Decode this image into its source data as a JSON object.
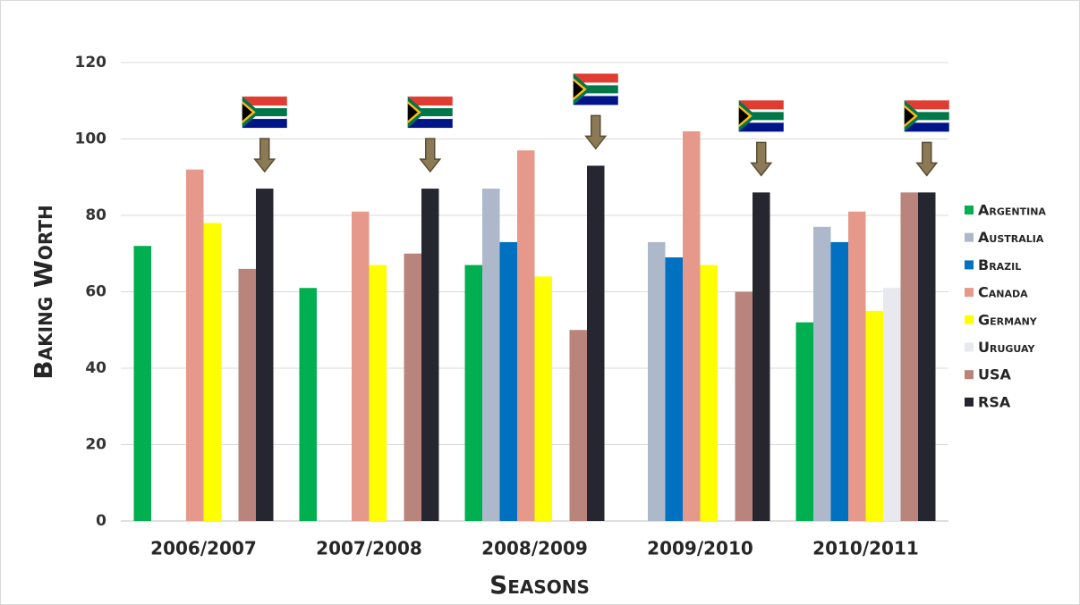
{
  "chart_data": {
    "type": "bar",
    "xlabel": "Seasons",
    "ylabel": "Baking Worth",
    "categories": [
      "2006/2007",
      "2007/2008",
      "2008/2009",
      "2009/2010",
      "2010/2011"
    ],
    "series": [
      {
        "name": "Argentina",
        "color": "#00b050",
        "values": [
          72,
          61,
          67,
          null,
          52
        ]
      },
      {
        "name": "Australia",
        "color": "#adb9ca",
        "values": [
          null,
          null,
          87,
          73,
          77
        ]
      },
      {
        "name": "Brazil",
        "color": "#0070c0",
        "values": [
          null,
          null,
          73,
          69,
          73
        ]
      },
      {
        "name": "Canada",
        "color": "#e6998a",
        "values": [
          92,
          81,
          97,
          102,
          81
        ]
      },
      {
        "name": "Germany",
        "color": "#ffff00",
        "values": [
          78,
          67,
          64,
          67,
          55
        ]
      },
      {
        "name": "Uruguay",
        "color": "#e7e9ef",
        "values": [
          null,
          null,
          null,
          null,
          61
        ]
      },
      {
        "name": "USA",
        "color": "#b9847c",
        "values": [
          66,
          70,
          50,
          60,
          86
        ]
      },
      {
        "name": "RSA",
        "color": "#262630",
        "values": [
          87,
          87,
          93,
          86,
          86
        ]
      }
    ],
    "ylim": [
      0,
      120
    ],
    "yticks": [
      0,
      20,
      40,
      60,
      80,
      100,
      120
    ],
    "grid": true,
    "legend": "right"
  }
}
